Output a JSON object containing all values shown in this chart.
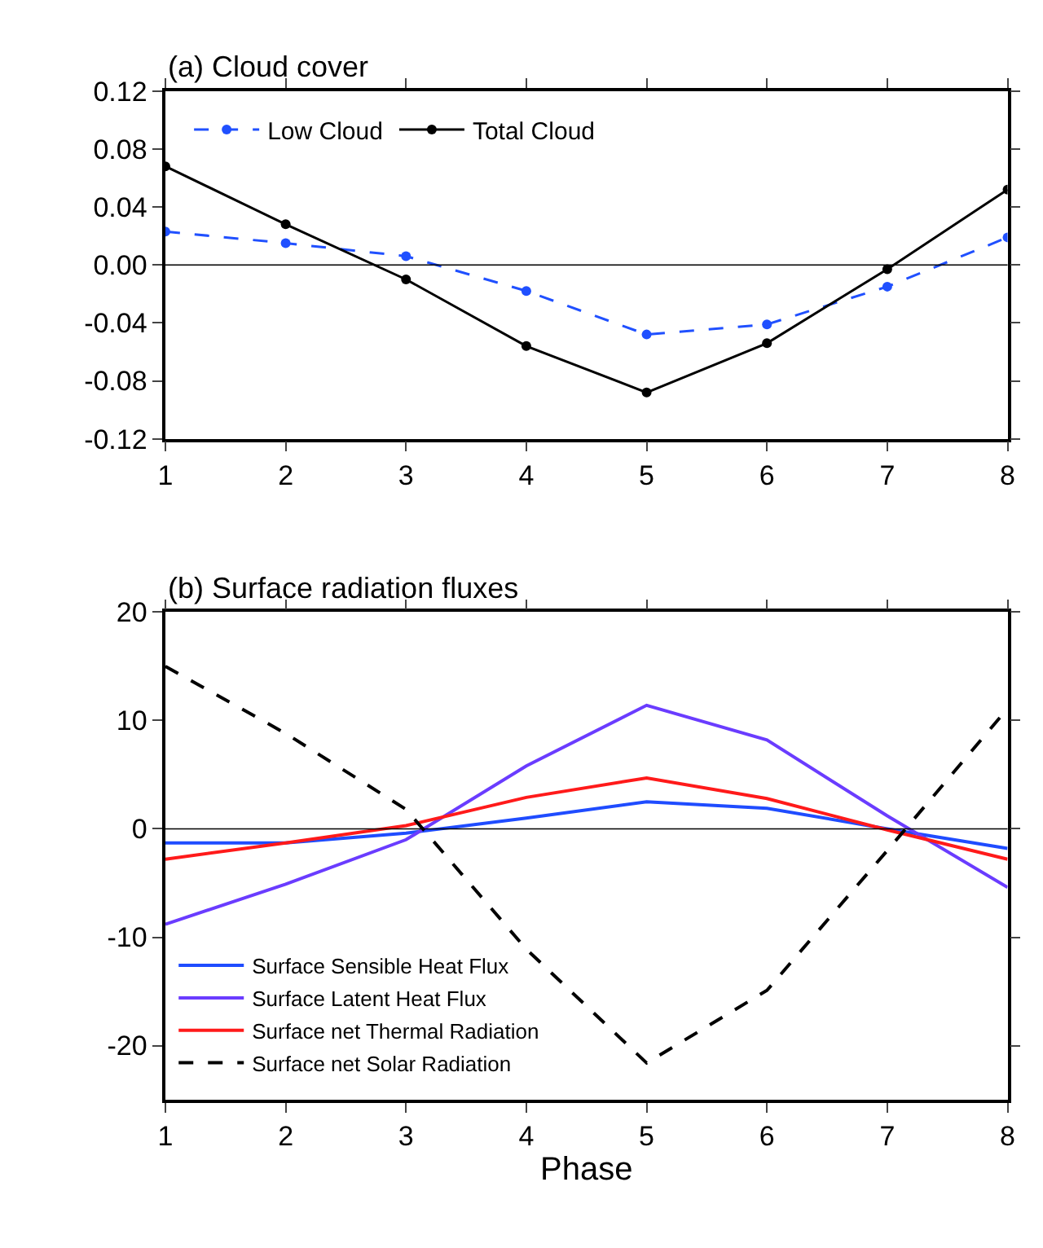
{
  "chart_data": [
    {
      "type": "line",
      "title": "(a) Cloud cover",
      "x": [
        1,
        2,
        3,
        4,
        5,
        6,
        7,
        8
      ],
      "xlim": [
        1,
        8
      ],
      "xticks": [
        1,
        2,
        3,
        4,
        5,
        6,
        7,
        8
      ],
      "ylim": [
        -0.12,
        0.12
      ],
      "yticks": [
        {
          "value": -0.12,
          "label": "-0.12"
        },
        {
          "value": -0.08,
          "label": "-0.08"
        },
        {
          "value": -0.04,
          "label": "-0.04"
        },
        {
          "value": 0,
          "label": "0.00"
        },
        {
          "value": 0.04,
          "label": "0.04"
        },
        {
          "value": 0.08,
          "label": "0.08"
        },
        {
          "value": 0.12,
          "label": "0.12"
        }
      ],
      "legend": "top left",
      "marker": "circle",
      "ref_lines": [
        {
          "axis": "y",
          "value": 0,
          "color": "#000000"
        }
      ],
      "series": [
        {
          "name": "Low Cloud",
          "color": "#2050ff",
          "line_style": "dashed",
          "values": [
            0.023,
            0.015,
            0.006,
            -0.018,
            -0.048,
            -0.041,
            -0.015,
            0.019
          ]
        },
        {
          "name": "Total Cloud",
          "color": "#000000",
          "line_style": "solid",
          "values": [
            0.068,
            0.028,
            -0.01,
            -0.056,
            -0.088,
            -0.054,
            -0.003,
            0.052
          ]
        }
      ]
    },
    {
      "type": "line",
      "title": "(b) Surface radiation fluxes",
      "xlabel": "Phase",
      "x": [
        1,
        2,
        3,
        4,
        5,
        6,
        7,
        8
      ],
      "xlim": [
        1,
        8
      ],
      "xticks": [
        1,
        2,
        3,
        4,
        5,
        6,
        7,
        8
      ],
      "ylim": [
        -25,
        20
      ],
      "yticks": [
        -20,
        -10,
        0,
        10,
        20
      ],
      "legend": "bottom left",
      "marker": "none",
      "ref_lines": [
        {
          "axis": "y",
          "value": 0,
          "color": "#000000"
        }
      ],
      "series": [
        {
          "name": "Surface Sensible Heat Flux",
          "color": "#1f4cff",
          "line_style": "solid",
          "values": [
            -1.3,
            -1.3,
            -0.4,
            1.0,
            2.5,
            1.9,
            0.0,
            -1.8
          ]
        },
        {
          "name": "Surface Latent Heat Flux",
          "color": "#6a3cff",
          "line_style": "solid",
          "values": [
            -8.8,
            -5.1,
            -1.0,
            5.8,
            11.4,
            8.2,
            1.2,
            -5.4
          ]
        },
        {
          "name": "Surface net Thermal Radiation",
          "color": "#ff1a1a",
          "line_style": "solid",
          "values": [
            -2.8,
            -1.3,
            0.3,
            2.9,
            4.7,
            2.8,
            -0.1,
            -2.8
          ]
        },
        {
          "name": "Surface net Solar Radiation",
          "color": "#000000",
          "line_style": "dashed",
          "values": [
            15.0,
            8.8,
            1.8,
            -11.1,
            -21.6,
            -14.9,
            -2.0,
            11.1
          ]
        }
      ]
    }
  ]
}
